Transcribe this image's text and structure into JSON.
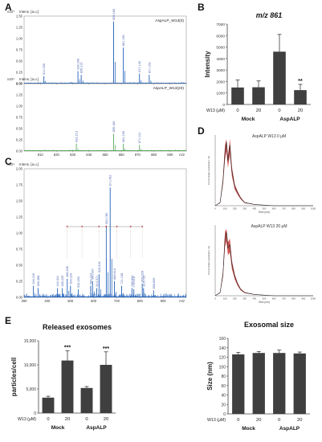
{
  "panels": {
    "A": "A",
    "B": "B",
    "C": "C",
    "D": "D",
    "E": "E"
  },
  "chart_data": [
    {
      "id": "A1",
      "type": "line",
      "series_label": "AspALP_W13(0)",
      "ylabel": "Intens. [a.u.]",
      "y_exponent": "x10⁴",
      "xlabel": "m/z",
      "xlim": [
        800,
        900
      ],
      "ylim": [
        0,
        1.5
      ],
      "y_ticks": [
        "0.00",
        "0.25",
        "0.50",
        "0.75",
        "1.00",
        "1.25",
        "1.50"
      ],
      "x_ticks": [
        "810",
        "820",
        "830",
        "840",
        "850",
        "860",
        "870",
        "880",
        "890"
      ],
      "peaks": [
        {
          "mz": 812.205,
          "rel": 0.12,
          "label": "812.205"
        },
        {
          "mz": 833.209,
          "rel": 0.2,
          "label": "833.209"
        },
        {
          "mz": 835.219,
          "rel": 0.14,
          "label": "835.219"
        },
        {
          "mz": 855.18,
          "rel": 1.0,
          "label": "855.180"
        },
        {
          "mz": 861.195,
          "rel": 0.58,
          "label": "861.195"
        },
        {
          "mz": 871.14,
          "rel": 0.16,
          "label": "871.140"
        },
        {
          "mz": 877.153,
          "rel": 0.14,
          "label": "877.153"
        }
      ]
    },
    {
      "id": "A2",
      "type": "line",
      "series_label": "AspALP_W13(20)",
      "ylabel": "Intens. [a.u.]",
      "y_exponent": "x10⁴",
      "xlabel": "m/z",
      "xlim": [
        800,
        900
      ],
      "ylim": [
        0,
        1.5
      ],
      "y_ticks": [
        "0.00",
        "0.25",
        "0.50",
        "0.75",
        "1.00",
        "1.25",
        "1.50"
      ],
      "x_ticks": [
        "810",
        "820",
        "830",
        "840",
        "850",
        "860",
        "870",
        "880",
        "890"
      ],
      "peaks": [
        {
          "mz": 832.213,
          "rel": 0.12,
          "label": "832.213"
        },
        {
          "mz": 855.18,
          "rel": 0.28,
          "label": "855.180"
        },
        {
          "mz": 861.19,
          "rel": 0.12,
          "label": "861.190"
        },
        {
          "mz": 871.141,
          "rel": 0.1,
          "label": "871.141"
        }
      ]
    },
    {
      "id": "B",
      "type": "bar",
      "title": "m/z 861",
      "ylabel": "Intensity",
      "ylim": [
        0,
        7000
      ],
      "y_ticks": [
        "0",
        "1000",
        "2000",
        "3000",
        "4000",
        "5000",
        "6000",
        "7000"
      ],
      "categories": [
        "0",
        "20",
        "0",
        "20"
      ],
      "groups": [
        "Mock",
        "AspALP"
      ],
      "xprefix": "W13 (μM)",
      "values": [
        1480,
        1500,
        4600,
        1250
      ],
      "errors": [
        650,
        550,
        1500,
        500
      ],
      "annotations": [
        {
          "index": 3,
          "text": "**"
        }
      ]
    },
    {
      "id": "C",
      "type": "line",
      "ylabel": "Intens. [a.u.]",
      "y_exponent": "x10⁴",
      "xlabel": "m/z",
      "xlim": [
        300,
        1000
      ],
      "ylim": [
        0,
        2.0
      ],
      "y_ticks": [
        "0.00",
        "0.25",
        "0.50",
        "0.75",
        "1.00",
        "1.25",
        "1.50",
        "1.75",
        "2.00"
      ],
      "x_ticks": [
        "300",
        "400",
        "500",
        "600",
        "700",
        "800",
        "900"
      ],
      "peaks": [
        {
          "mz": 340.24,
          "rel": 0.1,
          "label": "340.240"
        },
        {
          "mz": 360.388,
          "rel": 0.08,
          "label": "360.388"
        },
        {
          "mz": 444.341,
          "rel": 0.08,
          "label": "444.341"
        },
        {
          "mz": 465.225,
          "rel": 0.08,
          "label": "465.225"
        },
        {
          "mz": 486.268,
          "rel": 0.16,
          "label": "486.268"
        },
        {
          "mz": 500.229,
          "rel": 0.1,
          "label": "500.229"
        },
        {
          "mz": 534.25,
          "rel": 0.07,
          "label": "534.250"
        },
        {
          "mz": 587.274,
          "rel": 0.1,
          "label": "587.274"
        },
        {
          "mz": 595.397,
          "rel": 0.14,
          "label": "595.397"
        },
        {
          "mz": 613.371,
          "rel": 0.08,
          "label": "613.371"
        },
        {
          "mz": 623.318,
          "rel": 0.2,
          "label": "623.318"
        },
        {
          "mz": 654.789,
          "rel": 0.62,
          "label": "654.789"
        },
        {
          "mz": 671.492,
          "rel": 0.95,
          "label": "671.492"
        },
        {
          "mz": 689.81,
          "rel": 0.14,
          "label": "689.810"
        },
        {
          "mz": 721.158,
          "rel": 0.1,
          "label": "721.158"
        },
        {
          "mz": 765.553,
          "rel": 0.08,
          "label": "765.553"
        },
        {
          "mz": 773.618,
          "rel": 0.07,
          "label": "773.618"
        },
        {
          "mz": 809.928,
          "rel": 0.12,
          "label": "809.928"
        },
        {
          "mz": 815.726,
          "rel": 0.08,
          "label": "815.726"
        },
        {
          "mz": 858.895,
          "rel": 0.06,
          "label": "858.895"
        }
      ]
    },
    {
      "id": "D1",
      "type": "line",
      "title": "AspALP W13 0 μM",
      "ylabel": "Concentration (particles / ml)",
      "xlabel": "Size (nm)",
      "xlim": [
        0,
        1000
      ],
      "x_ticks": [
        "0",
        "100",
        "200",
        "300",
        "400",
        "500",
        "600",
        "700",
        "800",
        "900",
        "1000"
      ],
      "curve": [
        [
          0,
          0
        ],
        [
          50,
          0.05
        ],
        [
          80,
          0.4
        ],
        [
          100,
          0.85
        ],
        [
          115,
          1.0
        ],
        [
          130,
          0.7
        ],
        [
          150,
          0.95
        ],
        [
          170,
          0.55
        ],
        [
          200,
          0.3
        ],
        [
          230,
          0.2
        ],
        [
          260,
          0.12
        ],
        [
          300,
          0.05
        ],
        [
          400,
          0.02
        ],
        [
          600,
          0
        ],
        [
          1000,
          0
        ]
      ]
    },
    {
      "id": "D2",
      "type": "line",
      "title": "AspALP W13 20 μM",
      "ylabel": "Concentration (particles / ml)",
      "xlabel": "Size (nm)",
      "xlim": [
        0,
        1000
      ],
      "x_ticks": [
        "0",
        "100",
        "200",
        "300",
        "400",
        "500",
        "600",
        "700",
        "800",
        "900",
        "1000"
      ],
      "curve": [
        [
          0,
          0
        ],
        [
          50,
          0.05
        ],
        [
          80,
          0.35
        ],
        [
          100,
          0.9
        ],
        [
          115,
          1.0
        ],
        [
          130,
          0.75
        ],
        [
          150,
          0.8
        ],
        [
          170,
          0.5
        ],
        [
          200,
          0.3
        ],
        [
          230,
          0.18
        ],
        [
          260,
          0.1
        ],
        [
          300,
          0.05
        ],
        [
          400,
          0.02
        ],
        [
          600,
          0
        ],
        [
          1000,
          0
        ]
      ]
    },
    {
      "id": "E1",
      "type": "bar",
      "title": "Released exosomes",
      "ylabel": "particles/cell",
      "ylim": [
        0,
        15000
      ],
      "y_ticks": [
        "0",
        "5,000",
        "10,000",
        "15,000"
      ],
      "categories": [
        "0",
        "20",
        "0",
        "20"
      ],
      "groups": [
        "Mock",
        "AspALP"
      ],
      "xprefix": "W13 (μM)",
      "values": [
        3200,
        10900,
        5200,
        10000
      ],
      "errors": [
        300,
        2000,
        300,
        2700
      ],
      "annotations": [
        {
          "index": 1,
          "text": "***"
        },
        {
          "index": 3,
          "text": "***"
        }
      ]
    },
    {
      "id": "E2",
      "type": "bar",
      "title": "Exosomal size",
      "ylabel": "Size (nm)",
      "ylim": [
        0,
        160
      ],
      "y_ticks": [
        "0",
        "20",
        "40",
        "60",
        "80",
        "100",
        "120",
        "140",
        "160"
      ],
      "categories": [
        "0",
        "20",
        "0",
        "20"
      ],
      "groups": [
        "Mock",
        "AspALP"
      ],
      "xprefix": "W13 (μM)",
      "values": [
        126,
        129,
        129,
        128
      ],
      "errors": [
        4,
        3,
        6,
        3
      ],
      "annotations": []
    }
  ],
  "colors": {
    "spectrum_blue": "#1f5fb8",
    "spectrum_green": "#5aa85a",
    "bar_gray": "#3f3f3f",
    "size_dist_red": "#c0201e",
    "peak_label": "#4a63b0"
  }
}
